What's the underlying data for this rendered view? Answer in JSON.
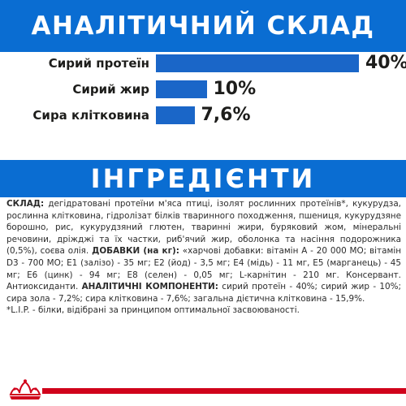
{
  "header": {
    "title": "АНАЛІТИЧНИЙ СКЛАД"
  },
  "nutrients": [
    {
      "label": "Сирий протеїн",
      "value": "40%",
      "percent": 40
    },
    {
      "label": "Сирий жир",
      "value": "10%",
      "percent": 10
    },
    {
      "label": "Сира клітковина",
      "value": "7,6%",
      "percent": 7.6
    }
  ],
  "ingredients": {
    "title": "ІНГРЕДІЄНТИ",
    "composition_label": "СКЛАД:",
    "composition_text": " дегідратовані протеїни м'яса птиці, ізолят рослинних протеїнів*, кукурудза, рослинна клітковина, гідролізат білків тваринного походження, пшениця, кукурудзяне борошно, рис, кукурудзяний глютен, тваринні жири, буряковий жом, мінеральні речовини, дріжджі та їх частки, риб'ячий жир, оболонка та насіння подорожника (0,5%), соєва олія. ",
    "additives_label": "ДОБАВКИ (на кг):",
    "additives_text": " «харчові добавки: вітамін А - 20 000 МО; вітамін D3 - 700 МО; Е1 (залізо) - 35 мг; Е2 (йод) - 3,5 мг; Е4 (мідь) - 11 мг, Е5 (марганець) - 45 мг; Е6 (цинк) - 94 мг; Е8 (селен) - 0,05 мг; L-карнітин - 210 мг. Консервант. Антиоксиданти. ",
    "analytical_label": "АНАЛІТИЧНІ КОМПОНЕНТИ:",
    "analytical_text": " сирий протеїн - 40%; сирий жир - 10%; сира зола - 7,2%; сира клітковина - 7,6%; загальна дієтична клітковина - 15,9%.",
    "footnote": "*L.I.P. - білки, відібрані за принципом оптимальної засвоюваності."
  },
  "colors": {
    "banner": "#0a6dd2",
    "bar": "#1a66c8",
    "accent": "#d0021b"
  },
  "footer": {
    "logo_icon": "crown-icon"
  }
}
